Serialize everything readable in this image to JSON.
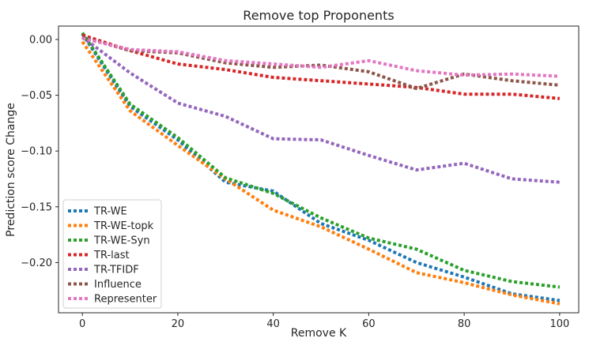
{
  "chart_data": {
    "type": "line",
    "title": "Remove top Proponents",
    "xlabel": "Remove K",
    "ylabel": "Prediction score Change",
    "xlim": [
      -5,
      104
    ],
    "ylim": [
      -0.245,
      0.012
    ],
    "xticks": [
      0,
      20,
      40,
      60,
      80,
      100
    ],
    "xtick_labels": [
      "0",
      "20",
      "40",
      "60",
      "80",
      "100"
    ],
    "yticks": [
      0.0,
      -0.05,
      -0.1,
      -0.15,
      -0.2
    ],
    "ytick_labels": [
      "0.00",
      "−0.05",
      "−0.10",
      "−0.15",
      "−0.20"
    ],
    "grid": false,
    "legend_position": "lower-left",
    "x": [
      0,
      10,
      20,
      30,
      40,
      50,
      60,
      70,
      80,
      90,
      100
    ],
    "series": [
      {
        "name": "TR-WE",
        "color": "#1f77b4",
        "values": [
          0.005,
          -0.06,
          -0.09,
          -0.128,
          -0.136,
          -0.165,
          -0.18,
          -0.2,
          -0.213,
          -0.228,
          -0.234
        ]
      },
      {
        "name": "TR-WE-topk",
        "color": "#ff7f0e",
        "values": [
          -0.002,
          -0.064,
          -0.095,
          -0.125,
          -0.153,
          -0.168,
          -0.188,
          -0.209,
          -0.218,
          -0.229,
          -0.237
        ]
      },
      {
        "name": "TR-WE-Syn",
        "color": "#2ca02c",
        "values": [
          0.006,
          -0.058,
          -0.088,
          -0.124,
          -0.138,
          -0.16,
          -0.178,
          -0.188,
          -0.207,
          -0.217,
          -0.222
        ]
      },
      {
        "name": "TR-last",
        "color": "#d62728",
        "values": [
          0.004,
          -0.01,
          -0.022,
          -0.027,
          -0.034,
          -0.037,
          -0.04,
          -0.043,
          -0.049,
          -0.049,
          -0.053
        ]
      },
      {
        "name": "TR-TFIDF",
        "color": "#9467bd",
        "values": [
          0.002,
          -0.03,
          -0.057,
          -0.069,
          -0.089,
          -0.09,
          -0.104,
          -0.117,
          -0.111,
          -0.125,
          -0.128
        ]
      },
      {
        "name": "Influence",
        "color": "#8c564b",
        "values": [
          0.002,
          -0.01,
          -0.012,
          -0.021,
          -0.025,
          -0.023,
          -0.029,
          -0.044,
          -0.031,
          -0.037,
          -0.041
        ]
      },
      {
        "name": "Representer",
        "color": "#e377c2",
        "values": [
          0.001,
          -0.009,
          -0.011,
          -0.019,
          -0.022,
          -0.025,
          -0.019,
          -0.028,
          -0.032,
          -0.031,
          -0.033
        ]
      }
    ]
  }
}
